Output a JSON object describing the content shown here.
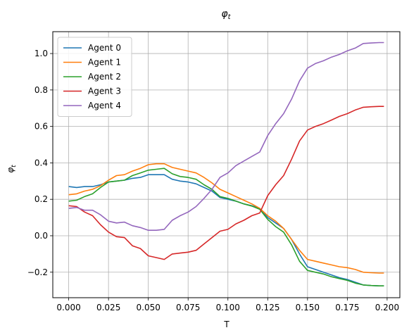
{
  "chart_data": {
    "type": "line",
    "title": "φ_t",
    "xlabel": "T",
    "ylabel": "φ_t",
    "xlim": [
      -0.01,
      0.208
    ],
    "ylim": [
      -0.34,
      1.12
    ],
    "x_ticks": [
      0.0,
      0.025,
      0.05,
      0.075,
      0.1,
      0.125,
      0.15,
      0.175,
      0.2
    ],
    "x_tick_labels": [
      "0.000",
      "0.025",
      "0.050",
      "0.075",
      "0.100",
      "0.125",
      "0.150",
      "0.175",
      "0.200"
    ],
    "y_ticks": [
      -0.2,
      0.0,
      0.2,
      0.4,
      0.6,
      0.8,
      1.0
    ],
    "y_tick_labels": [
      "−0.2",
      "0.0",
      "0.2",
      "0.4",
      "0.6",
      "0.8",
      "1.0"
    ],
    "grid": true,
    "legend_position": "top-left",
    "series": [
      {
        "name": "Agent 0",
        "color": "#1f77b4",
        "points": [
          [
            0.0,
            0.27
          ],
          [
            0.005,
            0.265
          ],
          [
            0.01,
            0.27
          ],
          [
            0.015,
            0.27
          ],
          [
            0.02,
            0.28
          ],
          [
            0.025,
            0.295
          ],
          [
            0.03,
            0.3
          ],
          [
            0.035,
            0.305
          ],
          [
            0.04,
            0.315
          ],
          [
            0.045,
            0.32
          ],
          [
            0.05,
            0.335
          ],
          [
            0.055,
            0.335
          ],
          [
            0.06,
            0.335
          ],
          [
            0.065,
            0.31
          ],
          [
            0.07,
            0.3
          ],
          [
            0.075,
            0.295
          ],
          [
            0.08,
            0.285
          ],
          [
            0.085,
            0.265
          ],
          [
            0.09,
            0.245
          ],
          [
            0.095,
            0.21
          ],
          [
            0.1,
            0.2
          ],
          [
            0.105,
            0.19
          ],
          [
            0.11,
            0.175
          ],
          [
            0.115,
            0.165
          ],
          [
            0.12,
            0.15
          ],
          [
            0.125,
            0.1
          ],
          [
            0.13,
            0.07
          ],
          [
            0.135,
            0.04
          ],
          [
            0.14,
            -0.02
          ],
          [
            0.145,
            -0.1
          ],
          [
            0.15,
            -0.17
          ],
          [
            0.155,
            -0.185
          ],
          [
            0.16,
            -0.2
          ],
          [
            0.165,
            -0.215
          ],
          [
            0.17,
            -0.23
          ],
          [
            0.175,
            -0.24
          ],
          [
            0.18,
            -0.255
          ],
          [
            0.185,
            -0.27
          ],
          [
            0.19,
            -0.273
          ],
          [
            0.195,
            -0.275
          ],
          [
            0.198,
            -0.275
          ]
        ]
      },
      {
        "name": "Agent 1",
        "color": "#ff7f0e",
        "points": [
          [
            0.0,
            0.225
          ],
          [
            0.005,
            0.23
          ],
          [
            0.01,
            0.245
          ],
          [
            0.015,
            0.255
          ],
          [
            0.02,
            0.275
          ],
          [
            0.025,
            0.305
          ],
          [
            0.03,
            0.33
          ],
          [
            0.035,
            0.335
          ],
          [
            0.04,
            0.355
          ],
          [
            0.045,
            0.37
          ],
          [
            0.05,
            0.39
          ],
          [
            0.055,
            0.395
          ],
          [
            0.06,
            0.395
          ],
          [
            0.065,
            0.375
          ],
          [
            0.07,
            0.365
          ],
          [
            0.075,
            0.355
          ],
          [
            0.08,
            0.345
          ],
          [
            0.085,
            0.32
          ],
          [
            0.09,
            0.29
          ],
          [
            0.095,
            0.255
          ],
          [
            0.1,
            0.235
          ],
          [
            0.105,
            0.215
          ],
          [
            0.11,
            0.195
          ],
          [
            0.115,
            0.175
          ],
          [
            0.12,
            0.15
          ],
          [
            0.125,
            0.11
          ],
          [
            0.13,
            0.08
          ],
          [
            0.135,
            0.04
          ],
          [
            0.14,
            -0.02
          ],
          [
            0.145,
            -0.08
          ],
          [
            0.15,
            -0.13
          ],
          [
            0.155,
            -0.14
          ],
          [
            0.16,
            -0.15
          ],
          [
            0.165,
            -0.16
          ],
          [
            0.17,
            -0.17
          ],
          [
            0.175,
            -0.175
          ],
          [
            0.18,
            -0.185
          ],
          [
            0.185,
            -0.2
          ],
          [
            0.19,
            -0.203
          ],
          [
            0.195,
            -0.205
          ],
          [
            0.198,
            -0.205
          ]
        ]
      },
      {
        "name": "Agent 2",
        "color": "#2ca02c",
        "points": [
          [
            0.0,
            0.19
          ],
          [
            0.005,
            0.195
          ],
          [
            0.01,
            0.215
          ],
          [
            0.015,
            0.23
          ],
          [
            0.02,
            0.265
          ],
          [
            0.025,
            0.295
          ],
          [
            0.03,
            0.3
          ],
          [
            0.035,
            0.305
          ],
          [
            0.04,
            0.33
          ],
          [
            0.045,
            0.345
          ],
          [
            0.05,
            0.36
          ],
          [
            0.055,
            0.365
          ],
          [
            0.06,
            0.37
          ],
          [
            0.065,
            0.34
          ],
          [
            0.07,
            0.325
          ],
          [
            0.075,
            0.32
          ],
          [
            0.08,
            0.31
          ],
          [
            0.085,
            0.28
          ],
          [
            0.09,
            0.255
          ],
          [
            0.095,
            0.215
          ],
          [
            0.1,
            0.205
          ],
          [
            0.105,
            0.19
          ],
          [
            0.11,
            0.175
          ],
          [
            0.115,
            0.163
          ],
          [
            0.12,
            0.145
          ],
          [
            0.125,
            0.09
          ],
          [
            0.13,
            0.05
          ],
          [
            0.135,
            0.02
          ],
          [
            0.14,
            -0.05
          ],
          [
            0.145,
            -0.14
          ],
          [
            0.15,
            -0.19
          ],
          [
            0.155,
            -0.2
          ],
          [
            0.16,
            -0.21
          ],
          [
            0.165,
            -0.225
          ],
          [
            0.17,
            -0.235
          ],
          [
            0.175,
            -0.245
          ],
          [
            0.18,
            -0.26
          ],
          [
            0.185,
            -0.27
          ],
          [
            0.19,
            -0.273
          ],
          [
            0.195,
            -0.275
          ],
          [
            0.198,
            -0.275
          ]
        ]
      },
      {
        "name": "Agent 3",
        "color": "#d62728",
        "points": [
          [
            0.0,
            0.165
          ],
          [
            0.005,
            0.16
          ],
          [
            0.01,
            0.13
          ],
          [
            0.015,
            0.11
          ],
          [
            0.02,
            0.06
          ],
          [
            0.025,
            0.02
          ],
          [
            0.03,
            -0.005
          ],
          [
            0.035,
            -0.01
          ],
          [
            0.04,
            -0.055
          ],
          [
            0.045,
            -0.07
          ],
          [
            0.05,
            -0.11
          ],
          [
            0.055,
            -0.12
          ],
          [
            0.06,
            -0.13
          ],
          [
            0.065,
            -0.1
          ],
          [
            0.07,
            -0.095
          ],
          [
            0.075,
            -0.09
          ],
          [
            0.08,
            -0.08
          ],
          [
            0.085,
            -0.045
          ],
          [
            0.09,
            -0.01
          ],
          [
            0.095,
            0.025
          ],
          [
            0.1,
            0.035
          ],
          [
            0.105,
            0.065
          ],
          [
            0.11,
            0.085
          ],
          [
            0.115,
            0.11
          ],
          [
            0.12,
            0.125
          ],
          [
            0.125,
            0.22
          ],
          [
            0.13,
            0.28
          ],
          [
            0.135,
            0.33
          ],
          [
            0.14,
            0.42
          ],
          [
            0.145,
            0.52
          ],
          [
            0.15,
            0.58
          ],
          [
            0.155,
            0.6
          ],
          [
            0.16,
            0.615
          ],
          [
            0.165,
            0.635
          ],
          [
            0.17,
            0.655
          ],
          [
            0.175,
            0.67
          ],
          [
            0.18,
            0.69
          ],
          [
            0.185,
            0.705
          ],
          [
            0.19,
            0.708
          ],
          [
            0.195,
            0.71
          ],
          [
            0.198,
            0.71
          ]
        ]
      },
      {
        "name": "Agent 4",
        "color": "#9467bd",
        "points": [
          [
            0.0,
            0.15
          ],
          [
            0.005,
            0.155
          ],
          [
            0.01,
            0.14
          ],
          [
            0.015,
            0.14
          ],
          [
            0.02,
            0.115
          ],
          [
            0.025,
            0.08
          ],
          [
            0.03,
            0.07
          ],
          [
            0.035,
            0.075
          ],
          [
            0.04,
            0.055
          ],
          [
            0.045,
            0.045
          ],
          [
            0.05,
            0.03
          ],
          [
            0.055,
            0.03
          ],
          [
            0.06,
            0.035
          ],
          [
            0.065,
            0.085
          ],
          [
            0.07,
            0.11
          ],
          [
            0.075,
            0.13
          ],
          [
            0.08,
            0.16
          ],
          [
            0.085,
            0.205
          ],
          [
            0.09,
            0.255
          ],
          [
            0.095,
            0.32
          ],
          [
            0.1,
            0.345
          ],
          [
            0.105,
            0.385
          ],
          [
            0.11,
            0.41
          ],
          [
            0.115,
            0.435
          ],
          [
            0.12,
            0.46
          ],
          [
            0.125,
            0.55
          ],
          [
            0.13,
            0.615
          ],
          [
            0.135,
            0.67
          ],
          [
            0.14,
            0.75
          ],
          [
            0.145,
            0.85
          ],
          [
            0.15,
            0.92
          ],
          [
            0.155,
            0.945
          ],
          [
            0.16,
            0.96
          ],
          [
            0.165,
            0.98
          ],
          [
            0.17,
            0.995
          ],
          [
            0.175,
            1.015
          ],
          [
            0.18,
            1.03
          ],
          [
            0.185,
            1.055
          ],
          [
            0.19,
            1.058
          ],
          [
            0.195,
            1.06
          ],
          [
            0.198,
            1.06
          ]
        ]
      }
    ]
  }
}
